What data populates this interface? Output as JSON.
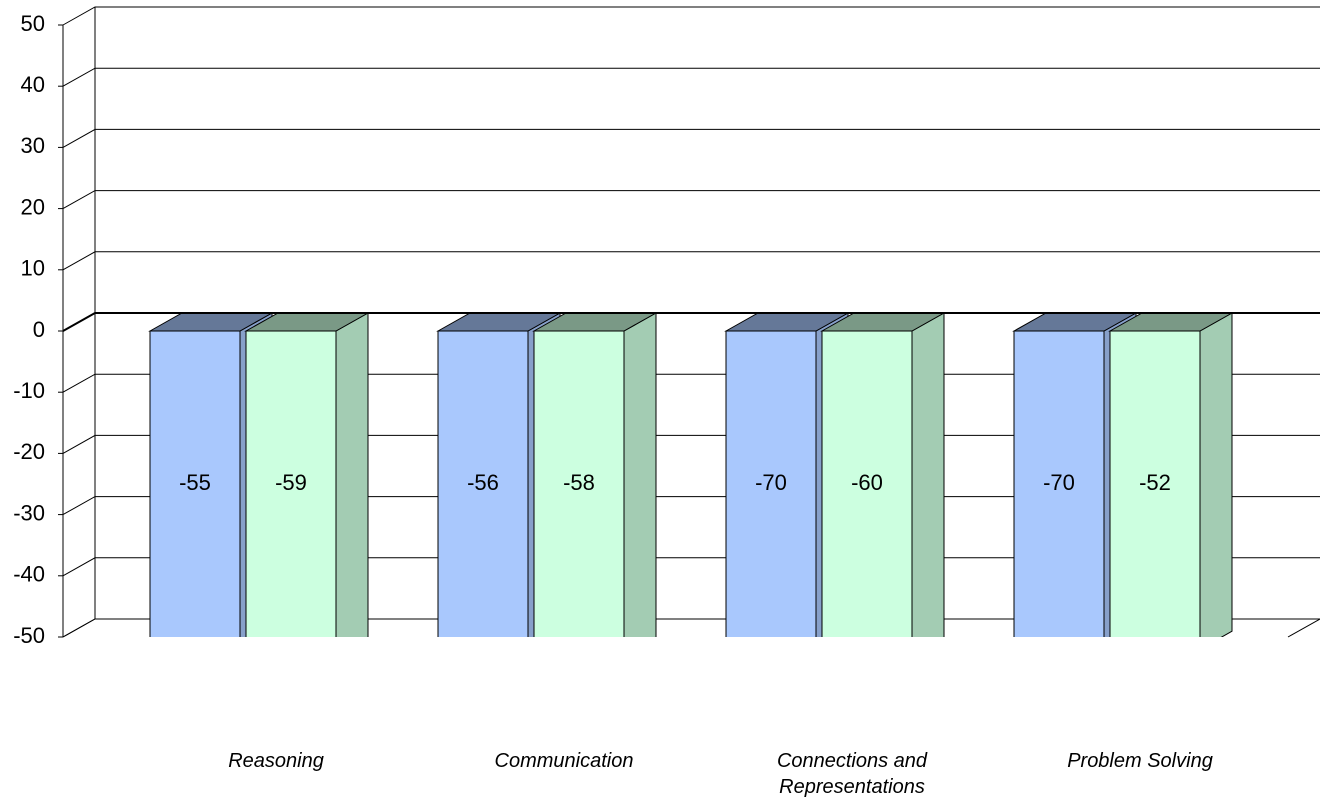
{
  "chart_data": {
    "type": "bar3d",
    "categories": [
      "Reasoning",
      "Communication",
      "Connections and Representations",
      "Problem Solving"
    ],
    "series": [
      {
        "color": "#a9c8fd",
        "values": [
          -55,
          -56,
          -70,
          -70
        ]
      },
      {
        "color": "#ccffe0",
        "values": [
          -59,
          -58,
          -60,
          -52
        ]
      }
    ],
    "ylim": [
      -50,
      50
    ],
    "yticks": [
      -50,
      -40,
      -30,
      -20,
      -10,
      0,
      10,
      20,
      30,
      40,
      50
    ],
    "grid": true
  }
}
